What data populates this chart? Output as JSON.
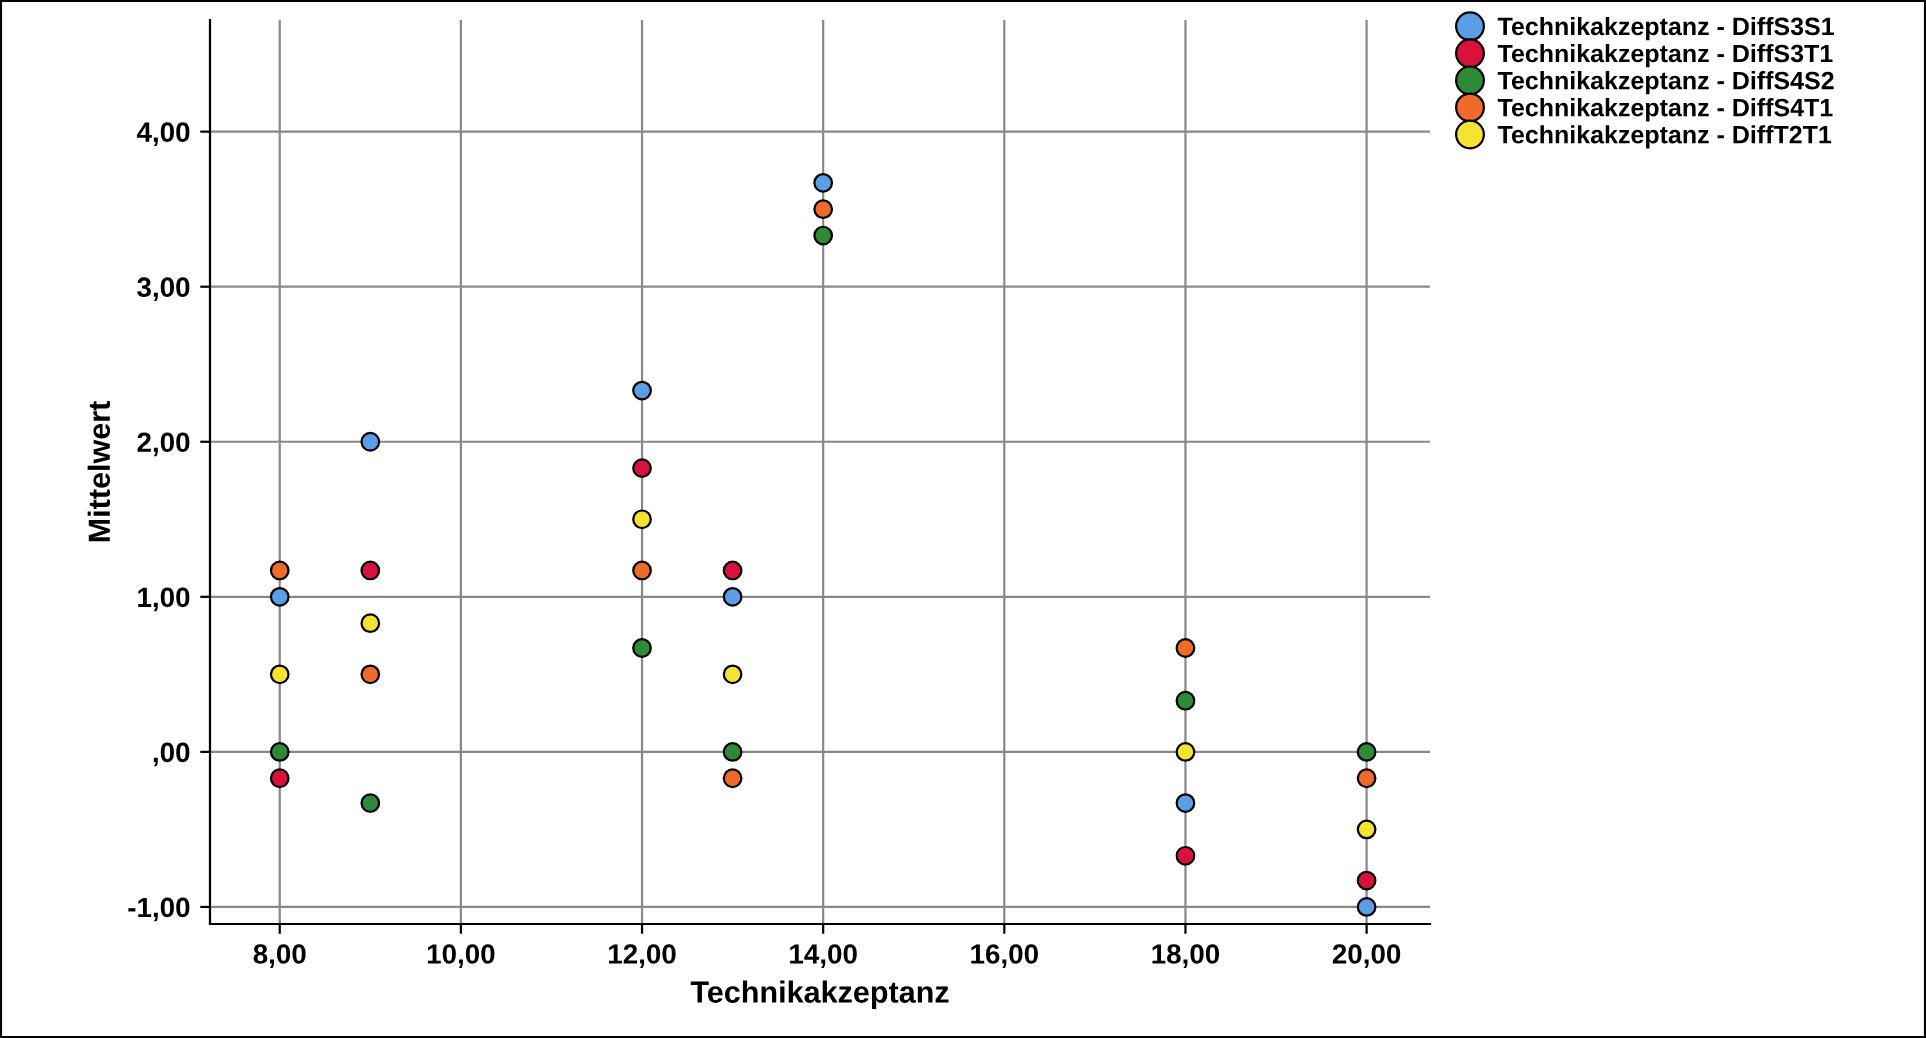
{
  "chart_data": {
    "type": "scatter",
    "xlabel": "Technikakzeptanz",
    "ylabel": "Mittelwert",
    "x": [
      8,
      9,
      12,
      13,
      14,
      18,
      20
    ],
    "series": [
      {
        "name": "Technikakzeptanz - DiffS3S1",
        "color": "#5b9ee6",
        "values": [
          1.0,
          2.0,
          2.33,
          1.0,
          3.67,
          -0.33,
          -1.0
        ]
      },
      {
        "name": "Technikakzeptanz - DiffS3T1",
        "color": "#d8123c",
        "values": [
          -0.17,
          1.17,
          1.83,
          1.17,
          null,
          -0.67,
          -0.83
        ]
      },
      {
        "name": "Technikakzeptanz - DiffS4S2",
        "color": "#2e8a36",
        "values": [
          0.0,
          -0.33,
          0.67,
          0.0,
          3.33,
          0.33,
          0.0
        ]
      },
      {
        "name": "Technikakzeptanz - DiffS4T1",
        "color": "#f06a2a",
        "values": [
          1.17,
          0.5,
          1.17,
          -0.17,
          3.5,
          0.67,
          -0.17
        ]
      },
      {
        "name": "Technikakzeptanz - DiffT2T1",
        "color": "#f4e330",
        "values": [
          0.5,
          0.83,
          1.5,
          0.5,
          null,
          0.0,
          -0.5
        ]
      }
    ],
    "xlim": [
      7.23,
      20.7
    ],
    "ylim": [
      -1.11,
      4.72
    ],
    "xticks": [
      {
        "value": 8,
        "label": "8,00"
      },
      {
        "value": 10,
        "label": "10,00"
      },
      {
        "value": 12,
        "label": "12,00"
      },
      {
        "value": 14,
        "label": "14,00"
      },
      {
        "value": 16,
        "label": "16,00"
      },
      {
        "value": 18,
        "label": "18,00"
      },
      {
        "value": 20,
        "label": "20,00"
      }
    ],
    "yticks": [
      {
        "value": -1,
        "label": "-1,00"
      },
      {
        "value": 0,
        "label": ",00"
      },
      {
        "value": 1,
        "label": "1,00"
      },
      {
        "value": 2,
        "label": "2,00"
      },
      {
        "value": 3,
        "label": "3,00"
      },
      {
        "value": 4,
        "label": "4,00"
      }
    ],
    "grid": true,
    "legend": "top right",
    "marker": "circle"
  }
}
